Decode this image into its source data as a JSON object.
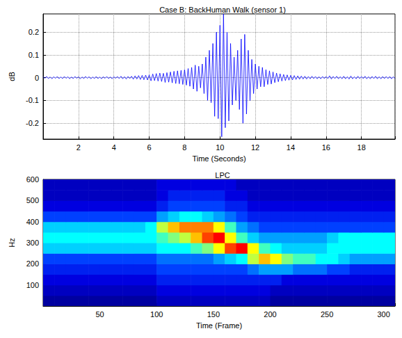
{
  "chart_data": [
    {
      "type": "line",
      "title": "Case B: BackHuman Walk (sensor 1)",
      "xlabel": "Time (Seconds)",
      "ylabel": "dB",
      "color": "#0000ff",
      "grid": true,
      "xlim": [
        0,
        19.9
      ],
      "xticks": [
        2,
        4,
        6,
        8,
        10,
        12,
        14,
        16,
        18
      ],
      "ylim": [
        -0.27,
        0.28
      ],
      "yticks": [
        -0.2,
        -0.1,
        0,
        0.1,
        0.2
      ],
      "x": [
        0,
        0.1,
        0.2,
        0.3,
        0.4,
        0.5,
        0.6,
        0.7,
        0.8,
        0.9,
        1,
        1.1,
        1.2,
        1.3,
        1.4,
        1.5,
        1.6,
        1.7,
        1.8,
        1.9,
        2,
        2.1,
        2.2,
        2.3,
        2.4,
        2.5,
        2.6,
        2.7,
        2.8,
        2.9,
        3,
        3.1,
        3.2,
        3.3,
        3.4,
        3.5,
        3.6,
        3.7,
        3.8,
        3.9,
        4,
        4.1,
        4.2,
        4.3,
        4.4,
        4.5,
        4.6,
        4.7,
        4.8,
        4.9,
        5,
        5.1,
        5.2,
        5.3,
        5.4,
        5.5,
        5.6,
        5.7,
        5.8,
        5.9,
        6,
        6.1,
        6.2,
        6.3,
        6.4,
        6.5,
        6.6,
        6.7,
        6.8,
        6.9,
        7,
        7.1,
        7.2,
        7.3,
        7.4,
        7.5,
        7.6,
        7.7,
        7.8,
        7.9,
        8,
        8.1,
        8.2,
        8.3,
        8.4,
        8.5,
        8.6,
        8.7,
        8.8,
        8.9,
        9,
        9.1,
        9.2,
        9.3,
        9.4,
        9.5,
        9.6,
        9.7,
        9.8,
        9.9,
        10,
        10.1,
        10.2,
        10.3,
        10.4,
        10.5,
        10.6,
        10.7,
        10.8,
        10.9,
        11,
        11.1,
        11.2,
        11.3,
        11.4,
        11.5,
        11.6,
        11.7,
        11.8,
        11.9,
        12,
        12.1,
        12.2,
        12.3,
        12.4,
        12.5,
        12.6,
        12.7,
        12.8,
        12.9,
        13,
        13.1,
        13.2,
        13.3,
        13.4,
        13.5,
        13.6,
        13.7,
        13.8,
        13.9,
        14,
        14.1,
        14.2,
        14.3,
        14.4,
        14.5,
        14.6,
        14.7,
        14.8,
        14.9,
        15,
        15.1,
        15.2,
        15.3,
        15.4,
        15.5,
        15.6,
        15.7,
        15.8,
        15.9,
        16,
        16.1,
        16.2,
        16.3,
        16.4,
        16.5,
        16.6,
        16.7,
        16.8,
        16.9,
        17,
        17.1,
        17.2,
        17.3,
        17.4,
        17.5,
        17.6,
        17.7,
        17.8,
        17.9,
        18,
        18.1,
        18.2,
        18.3,
        18.4,
        18.5,
        18.6,
        18.7,
        18.8,
        18.9,
        19,
        19.1,
        19.2,
        19.3,
        19.4,
        19.5,
        19.6,
        19.7,
        19.8,
        19.9
      ],
      "values": [
        0.004,
        -0.003,
        0.005,
        -0.004,
        0.003,
        -0.005,
        0.004,
        -0.003,
        0.005,
        -0.004,
        0.003,
        -0.004,
        0.005,
        -0.003,
        0.004,
        -0.005,
        0.003,
        -0.004,
        0.005,
        -0.003,
        0.004,
        -0.005,
        0.003,
        -0.004,
        0.005,
        -0.003,
        0.004,
        -0.005,
        0.003,
        -0.004,
        0.005,
        -0.004,
        0.003,
        -0.005,
        0.004,
        -0.003,
        0.005,
        -0.004,
        0.003,
        -0.005,
        0.004,
        -0.003,
        0.005,
        -0.004,
        0.006,
        -0.005,
        0.004,
        -0.006,
        0.005,
        -0.004,
        0.006,
        -0.007,
        0.008,
        -0.006,
        0.009,
        -0.008,
        0.01,
        -0.009,
        0.011,
        -0.01,
        0.012,
        -0.014,
        0.016,
        -0.013,
        0.018,
        -0.015,
        0.02,
        -0.017,
        0.019,
        -0.021,
        0.022,
        -0.02,
        0.025,
        -0.023,
        0.028,
        -0.026,
        0.03,
        -0.027,
        0.032,
        -0.03,
        0.035,
        -0.033,
        0.04,
        -0.038,
        0.045,
        -0.05,
        0.055,
        -0.06,
        0.05,
        -0.045,
        0.06,
        -0.07,
        0.09,
        -0.1,
        0.12,
        -0.11,
        0.15,
        -0.17,
        0.2,
        -0.18,
        0.23,
        -0.26,
        0.28,
        -0.22,
        0.2,
        -0.19,
        0.15,
        -0.12,
        0.09,
        -0.1,
        0.12,
        -0.14,
        0.17,
        -0.2,
        0.19,
        -0.16,
        0.12,
        -0.1,
        0.08,
        -0.07,
        0.06,
        -0.05,
        0.05,
        -0.04,
        0.045,
        -0.04,
        0.035,
        -0.03,
        0.03,
        -0.028,
        0.025,
        -0.022,
        0.02,
        -0.018,
        0.017,
        -0.015,
        0.014,
        -0.013,
        0.012,
        -0.011,
        0.01,
        -0.01,
        0.009,
        -0.008,
        0.008,
        -0.007,
        0.007,
        -0.006,
        0.006,
        -0.006,
        0.005,
        -0.005,
        0.006,
        -0.004,
        0.005,
        -0.005,
        0.004,
        -0.005,
        0.005,
        -0.004,
        0.005,
        -0.004,
        0.008,
        -0.006,
        0.005,
        -0.004,
        0.006,
        -0.005,
        0.004,
        -0.005,
        0.006,
        -0.005,
        0.004,
        -0.006,
        0.007,
        -0.005,
        0.004,
        -0.005,
        0.006,
        -0.004,
        0.005,
        -0.004,
        0.006,
        -0.005,
        0.004,
        -0.005,
        0.005,
        -0.004,
        0.006,
        -0.005,
        0.004,
        -0.005,
        0.005,
        -0.004,
        0.005,
        -0.004,
        0.005,
        -0.005,
        0.004,
        -0.004
      ]
    },
    {
      "type": "heatmap",
      "title": "LPC",
      "xlabel": "Time (Frame)",
      "ylabel": "Hz",
      "grid": false,
      "xlim": [
        0,
        310
      ],
      "xticks": [
        50,
        100,
        150,
        200,
        250,
        300
      ],
      "ylim": [
        0,
        600
      ],
      "yticks": [
        100,
        200,
        300,
        400,
        500,
        600
      ],
      "zlim": [
        0,
        10
      ],
      "x": [
        5,
        15,
        25,
        35,
        45,
        55,
        65,
        75,
        85,
        95,
        105,
        115,
        125,
        135,
        145,
        155,
        165,
        175,
        185,
        195,
        205,
        215,
        225,
        235,
        245,
        255,
        265,
        275,
        285,
        295,
        305
      ],
      "y": [
        25,
        75,
        125,
        175,
        225,
        275,
        325,
        375,
        425,
        475,
        525,
        575
      ],
      "z": [
        [
          1,
          1,
          1,
          1,
          1,
          1,
          1,
          1,
          1,
          1,
          1.5,
          1.5,
          1.5,
          1.5,
          1.5,
          1.5,
          1.5,
          1.5,
          1.5,
          1.5,
          1,
          1,
          1,
          1,
          1,
          1,
          1,
          1,
          1,
          1,
          1
        ],
        [
          1.5,
          1.5,
          1.5,
          1.5,
          1.5,
          1.5,
          1.5,
          1.5,
          1.5,
          1.5,
          2,
          2,
          2,
          2,
          2,
          2,
          2,
          2,
          2,
          2,
          1.5,
          1.5,
          1.5,
          1.5,
          1.5,
          1.5,
          1.5,
          1.5,
          1.5,
          1.5,
          1.5
        ],
        [
          2,
          2,
          2,
          2,
          2,
          2,
          2,
          2,
          2,
          2,
          2.5,
          2.5,
          2.5,
          2.5,
          2.5,
          2.5,
          2.5,
          2.5,
          2.5,
          2.5,
          2.5,
          2,
          2,
          2,
          2,
          2,
          2,
          2,
          2,
          2,
          2
        ],
        [
          2.5,
          2.5,
          2.5,
          2.5,
          2.5,
          2.5,
          2.5,
          2.5,
          2.5,
          2.5,
          3,
          3,
          3,
          3,
          3,
          3,
          3,
          3,
          3.5,
          4,
          4,
          4,
          3.5,
          3.5,
          3.5,
          3,
          3,
          2.5,
          2.5,
          2.5,
          2.5
        ],
        [
          3,
          3,
          3,
          3,
          3,
          3,
          3,
          3,
          3,
          3,
          3.5,
          3.5,
          3.5,
          3.5,
          3.5,
          4,
          4.5,
          5,
          6.5,
          7.5,
          7,
          6,
          5.5,
          5.5,
          5,
          5,
          4.5,
          4,
          4,
          4,
          4
        ],
        [
          4.5,
          4.5,
          4.5,
          4.5,
          4.5,
          4.5,
          4.5,
          4.5,
          4.5,
          4.5,
          5,
          5,
          5,
          5.5,
          6,
          7,
          8.5,
          9,
          7,
          5.5,
          5,
          4.5,
          4.5,
          4.5,
          4.5,
          5,
          5,
          5,
          5,
          5,
          5
        ],
        [
          5,
          5,
          5,
          5,
          5,
          5,
          5,
          5,
          5,
          5,
          5.5,
          6,
          6.5,
          7.5,
          8.5,
          9,
          7,
          5.5,
          4.5,
          4,
          4,
          4,
          4,
          4,
          4,
          4.5,
          5,
          5,
          5,
          5,
          5
        ],
        [
          4.5,
          4.5,
          4.5,
          4.5,
          4.5,
          4.5,
          4.5,
          4.5,
          4.5,
          5,
          6.5,
          7.5,
          8,
          8,
          8,
          7,
          5.5,
          4,
          3.5,
          3,
          3,
          3,
          3,
          3,
          3,
          3,
          3,
          3,
          3,
          3,
          3
        ],
        [
          3,
          3,
          3,
          3,
          3,
          3,
          3,
          3,
          3,
          3,
          4,
          4.5,
          5,
          5,
          4.5,
          4,
          3.5,
          3,
          2.5,
          2.5,
          2.5,
          2.5,
          2.5,
          2.5,
          2.5,
          2.5,
          2.5,
          2.5,
          2.5,
          2.5,
          2.5
        ],
        [
          2,
          2,
          2,
          2,
          2,
          2,
          2,
          2,
          2,
          2,
          2.5,
          3,
          3,
          3,
          3,
          3,
          2.5,
          2.5,
          2,
          2,
          2,
          2,
          2,
          2,
          2,
          2,
          2,
          2,
          2,
          2,
          2
        ],
        [
          1.5,
          1.5,
          1.5,
          1.5,
          1.5,
          1.5,
          1.5,
          1.5,
          1.5,
          1.5,
          2,
          2.5,
          2.5,
          2.5,
          2.5,
          2.5,
          2,
          2,
          1.5,
          1.5,
          1.5,
          1.5,
          1.5,
          1.5,
          1.5,
          1.5,
          1.5,
          1.5,
          1.5,
          1.5,
          1.5
        ],
        [
          1.5,
          1.5,
          1.5,
          1.5,
          1.5,
          1.5,
          1.5,
          1.5,
          1.5,
          1.5,
          2,
          2,
          2,
          2,
          2,
          2,
          2,
          1.5,
          1.5,
          1.5,
          1.5,
          1.5,
          1.5,
          1.5,
          1.5,
          1.5,
          1.5,
          1.5,
          1.5,
          1.5,
          1.5
        ]
      ]
    }
  ]
}
